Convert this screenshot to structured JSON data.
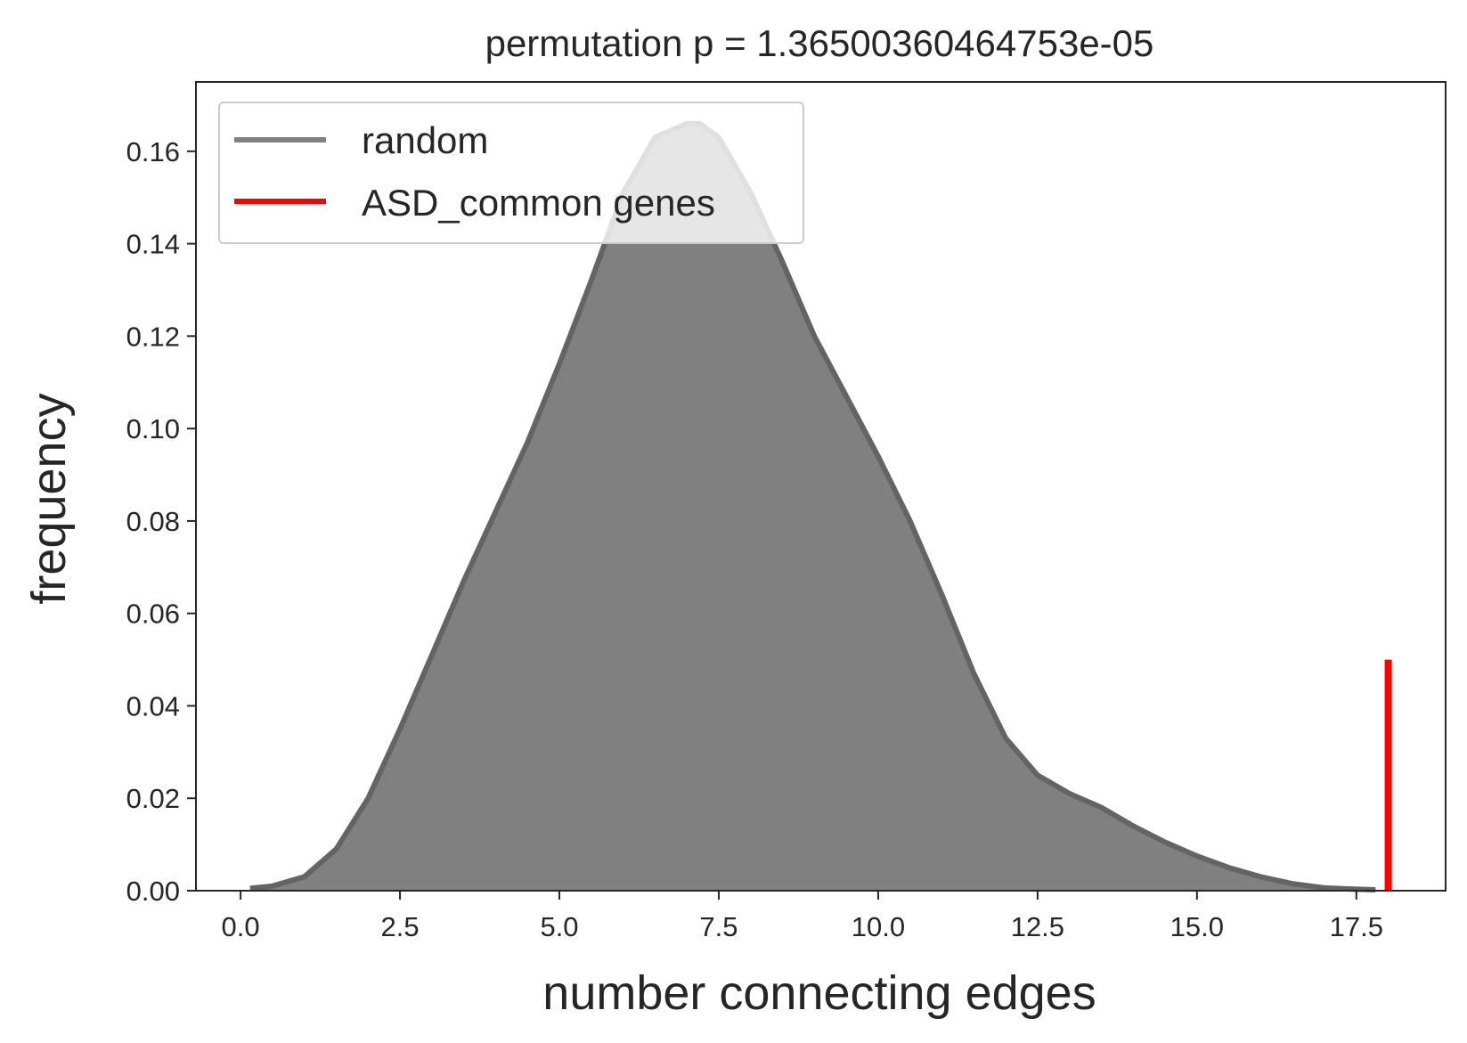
{
  "chart_data": {
    "type": "area",
    "title": "permutation p = 1.36500360464753e-05",
    "xlabel": "number connecting edges",
    "ylabel": "frequency",
    "xlim": [
      -0.7,
      18.9
    ],
    "ylim": [
      0,
      0.175
    ],
    "xticks": [
      0.0,
      2.5,
      5.0,
      7.5,
      10.0,
      12.5,
      15.0,
      17.5
    ],
    "xtick_labels": [
      "0.0",
      "2.5",
      "5.0",
      "7.5",
      "10.0",
      "12.5",
      "15.0",
      "17.5"
    ],
    "yticks": [
      0.0,
      0.02,
      0.04,
      0.06,
      0.08,
      0.1,
      0.12,
      0.14,
      0.16
    ],
    "ytick_labels": [
      "0.00",
      "0.02",
      "0.04",
      "0.06",
      "0.08",
      "0.10",
      "0.12",
      "0.14",
      "0.16"
    ],
    "grid": false,
    "legend_position": "top-left",
    "series": [
      {
        "name": "random",
        "kind": "density",
        "color": "#808080",
        "line_color": "#646464",
        "x": [
          0.15,
          0.5,
          1.0,
          1.5,
          2.0,
          2.5,
          3.0,
          3.5,
          4.0,
          4.5,
          5.0,
          5.5,
          6.0,
          6.5,
          7.0,
          7.2,
          7.5,
          8.0,
          8.5,
          9.0,
          9.5,
          10.0,
          10.5,
          11.0,
          11.5,
          12.0,
          12.5,
          13.0,
          13.5,
          14.0,
          14.5,
          15.0,
          15.5,
          16.0,
          16.5,
          17.0,
          17.5,
          17.8
        ],
        "y": [
          0.0005,
          0.001,
          0.003,
          0.009,
          0.02,
          0.035,
          0.051,
          0.067,
          0.082,
          0.097,
          0.114,
          0.132,
          0.151,
          0.163,
          0.166,
          0.166,
          0.163,
          0.151,
          0.136,
          0.12,
          0.107,
          0.094,
          0.08,
          0.064,
          0.047,
          0.033,
          0.025,
          0.021,
          0.018,
          0.014,
          0.0105,
          0.0075,
          0.005,
          0.003,
          0.0015,
          0.0006,
          0.0003,
          0.0002
        ]
      },
      {
        "name": "ASD_common genes",
        "kind": "vline",
        "color": "#ff0000",
        "x": 18.0,
        "y_range": [
          0.0,
          0.05
        ]
      }
    ]
  }
}
